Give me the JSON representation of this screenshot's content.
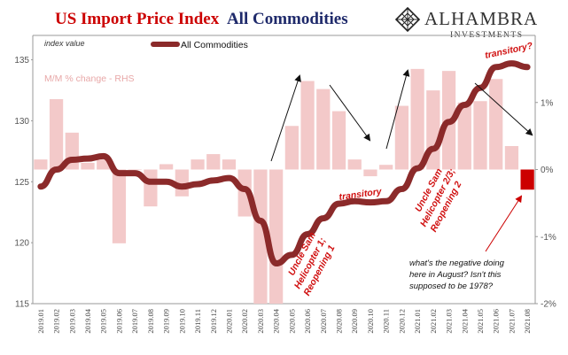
{
  "header": {
    "title_part1": "US Import Price Index",
    "title_part2": "All Commodities",
    "title_part1_color": "#cc0000",
    "title_part2_color": "#1f2a6b"
  },
  "logo": {
    "name": "ALHAMBRA",
    "tagline": "INVESTMENTS",
    "icon": "diamond-lattice-icon"
  },
  "chart_data": {
    "type": "bar+line",
    "title": "US Import Price Index All Commodities",
    "ylabel_left": "index value",
    "ylabel_right": "",
    "left_ylim": [
      115,
      137
    ],
    "left_ticks": [
      "115",
      "120",
      "125",
      "130",
      "135"
    ],
    "right_ylim": [
      -2.0,
      2.0
    ],
    "right_ticks": [
      "-2%",
      "-1%",
      "0%",
      "1%"
    ],
    "legend": {
      "label": "All Commodities",
      "placement": "top-center"
    },
    "rhs_label": "M/M % change - RHS",
    "categories": [
      "2019.01",
      "2019.02",
      "2019.03",
      "2019.04",
      "2019.05",
      "2019.06",
      "2019.07",
      "2019.08",
      "2019.09",
      "2019.10",
      "2019.11",
      "2019.12",
      "2020.01",
      "2020.02",
      "2020.03",
      "2020.04",
      "2020.05",
      "2020.06",
      "2020.07",
      "2020.08",
      "2020.09",
      "2020.10",
      "2020.11",
      "2020.12",
      "2021.01",
      "2021.02",
      "2021.03",
      "2021.04",
      "2021.05",
      "2021.06",
      "2021.07",
      "2021.08"
    ],
    "series": [
      {
        "name": "All Commodities",
        "kind": "line",
        "axis": "left",
        "color": "#8b2a2a",
        "values": [
          124.6,
          126.0,
          126.8,
          126.9,
          127.1,
          125.7,
          125.7,
          125.0,
          125.0,
          124.6,
          124.8,
          125.1,
          125.3,
          124.4,
          121.8,
          118.3,
          119.0,
          120.7,
          122.0,
          123.2,
          123.4,
          123.3,
          123.4,
          124.4,
          126.1,
          127.7,
          129.9,
          131.3,
          132.7,
          134.4,
          134.7,
          134.4
        ]
      },
      {
        "name": "M/M % change - RHS",
        "kind": "bar",
        "axis": "right",
        "color": "#f3c9c9",
        "values": [
          0.15,
          1.05,
          0.55,
          0.1,
          0.15,
          -1.1,
          0.0,
          -0.55,
          0.08,
          -0.4,
          0.15,
          0.23,
          0.15,
          -0.7,
          -2.0,
          -2.0,
          0.65,
          1.32,
          1.2,
          0.87,
          0.15,
          -0.1,
          0.07,
          0.95,
          1.5,
          1.18,
          1.47,
          1.0,
          1.02,
          1.35,
          0.35,
          -0.3
        ],
        "highlight_index": 31,
        "highlight_color": "#cc0000"
      }
    ],
    "annotations": [
      {
        "id": "transitory-top",
        "text": "transitory?",
        "color": "red"
      },
      {
        "id": "transitory-mid",
        "text": "transitory",
        "color": "red"
      },
      {
        "id": "uncle-sam-1",
        "lines": [
          "Uncle Sam",
          "Helicopter 1;",
          "Reopening 1"
        ],
        "color": "red"
      },
      {
        "id": "uncle-sam-23",
        "lines": [
          "Uncle Sam",
          "Helicopter 2/3;",
          "Reopening 2"
        ],
        "color": "red"
      },
      {
        "id": "negative-question",
        "lines": [
          "what's the negative doing",
          "here in August? Isn't this",
          "supposed to be 1978?"
        ],
        "color": "black"
      }
    ]
  }
}
